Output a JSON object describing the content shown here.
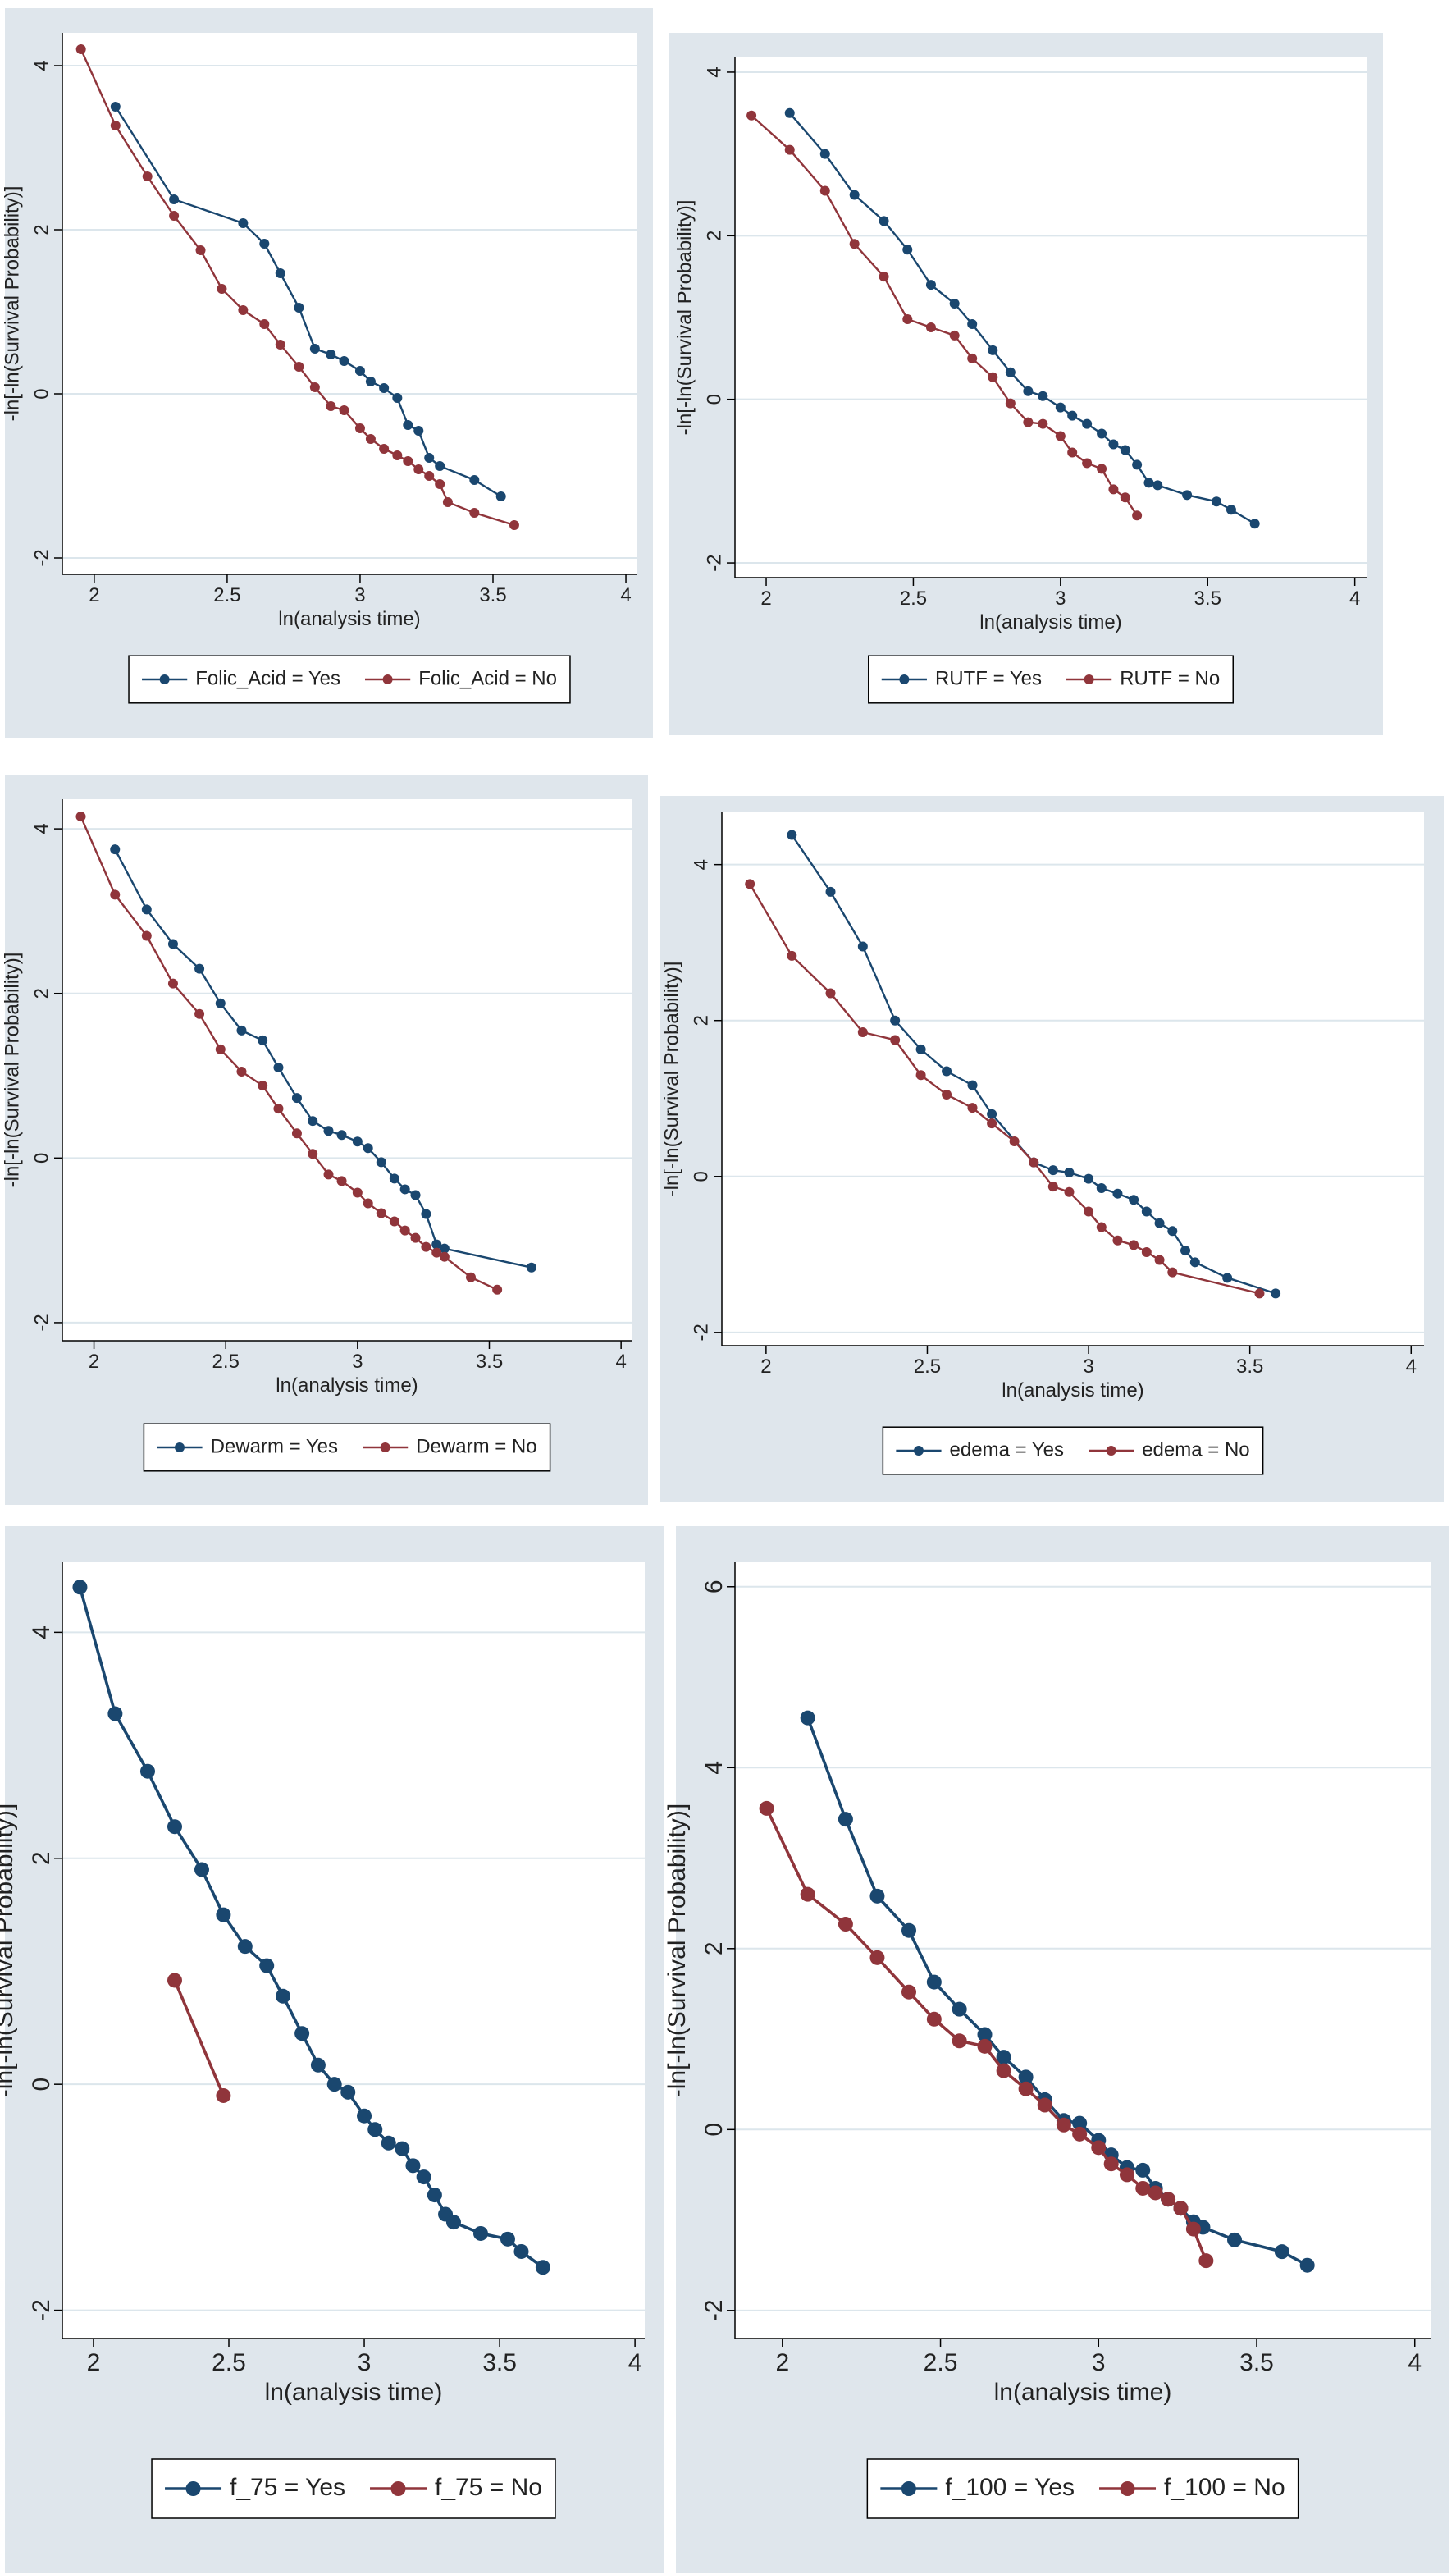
{
  "chart_data": [
    {
      "type": "line",
      "xlabel": "ln(analysis time)",
      "ylabel": "-ln[-ln(Survival Probability)]",
      "xlim": [
        1.88,
        4.04
      ],
      "ylim": [
        -2.2,
        4.4
      ],
      "xticks": [
        2,
        2.5,
        3,
        3.5,
        4
      ],
      "yticks": [
        -2,
        0,
        2,
        4
      ],
      "grid": true,
      "series": [
        {
          "name": "Folic_Acid = Yes",
          "color": "#1a476f",
          "x": [
            2.08,
            2.3,
            2.56,
            2.64,
            2.7,
            2.77,
            2.83,
            2.89,
            2.94,
            3.0,
            3.04,
            3.09,
            3.14,
            3.18,
            3.22,
            3.26,
            3.3,
            3.43,
            3.53
          ],
          "values": [
            3.5,
            2.37,
            2.08,
            1.83,
            1.47,
            1.05,
            0.55,
            0.48,
            0.4,
            0.28,
            0.15,
            0.07,
            -0.05,
            -0.38,
            -0.45,
            -0.78,
            -0.88,
            -1.05,
            -1.25
          ]
        },
        {
          "name": "Folic_Acid = No",
          "color": "#90353b",
          "x": [
            1.95,
            2.08,
            2.2,
            2.3,
            2.4,
            2.48,
            2.56,
            2.64,
            2.7,
            2.77,
            2.83,
            2.89,
            2.94,
            3.0,
            3.04,
            3.09,
            3.14,
            3.18,
            3.22,
            3.26,
            3.3,
            3.33,
            3.43,
            3.58
          ],
          "values": [
            4.2,
            3.27,
            2.65,
            2.17,
            1.75,
            1.28,
            1.02,
            0.85,
            0.6,
            0.33,
            0.08,
            -0.15,
            -0.2,
            -0.42,
            -0.55,
            -0.67,
            -0.75,
            -0.82,
            -0.92,
            -1.0,
            -1.1,
            -1.32,
            -1.45,
            -1.6
          ]
        }
      ]
    },
    {
      "type": "line",
      "xlabel": "ln(analysis time)",
      "ylabel": "-ln[-ln(Survival Probability)]",
      "xlim": [
        1.894,
        4.04
      ],
      "ylim": [
        -2.18,
        4.18
      ],
      "xticks": [
        2,
        2.5,
        3,
        3.5,
        4
      ],
      "yticks": [
        -2,
        0,
        2,
        4
      ],
      "grid": true,
      "series": [
        {
          "name": "RUTF = Yes",
          "color": "#1a476f",
          "x": [
            2.08,
            2.2,
            2.3,
            2.4,
            2.48,
            2.56,
            2.64,
            2.7,
            2.77,
            2.83,
            2.89,
            2.94,
            3.0,
            3.04,
            3.09,
            3.14,
            3.18,
            3.22,
            3.26,
            3.3,
            3.33,
            3.43,
            3.53,
            3.58,
            3.66
          ],
          "values": [
            3.5,
            3.0,
            2.5,
            2.18,
            1.83,
            1.4,
            1.17,
            0.92,
            0.6,
            0.33,
            0.1,
            0.04,
            -0.1,
            -0.2,
            -0.3,
            -0.42,
            -0.55,
            -0.62,
            -0.8,
            -1.02,
            -1.05,
            -1.17,
            -1.25,
            -1.35,
            -1.52
          ]
        },
        {
          "name": "RUTF = No",
          "color": "#90353b",
          "x": [
            1.95,
            2.08,
            2.2,
            2.3,
            2.4,
            2.48,
            2.56,
            2.64,
            2.7,
            2.77,
            2.83,
            2.89,
            2.94,
            3.0,
            3.04,
            3.09,
            3.14,
            3.18,
            3.22,
            3.26
          ],
          "values": [
            3.47,
            3.05,
            2.55,
            1.9,
            1.5,
            0.98,
            0.88,
            0.78,
            0.5,
            0.27,
            -0.05,
            -0.28,
            -0.3,
            -0.45,
            -0.65,
            -0.78,
            -0.85,
            -1.1,
            -1.2,
            -1.42
          ]
        }
      ]
    },
    {
      "type": "line",
      "xlabel": "ln(analysis time)",
      "ylabel": "-ln[-ln(Survival Probability)]",
      "xlim": [
        1.88,
        4.04
      ],
      "ylim": [
        -2.22,
        4.36
      ],
      "xticks": [
        2,
        2.5,
        3,
        3.5,
        4
      ],
      "yticks": [
        -2,
        0,
        2,
        4
      ],
      "grid": true,
      "series": [
        {
          "name": "Dewarm = Yes",
          "color": "#1a476f",
          "x": [
            2.08,
            2.2,
            2.3,
            2.4,
            2.48,
            2.56,
            2.64,
            2.7,
            2.77,
            2.83,
            2.89,
            2.94,
            3.0,
            3.04,
            3.09,
            3.14,
            3.18,
            3.22,
            3.26,
            3.3,
            3.33,
            3.66
          ],
          "values": [
            3.75,
            3.02,
            2.6,
            2.3,
            1.88,
            1.55,
            1.43,
            1.1,
            0.73,
            0.45,
            0.33,
            0.28,
            0.2,
            0.12,
            -0.05,
            -0.25,
            -0.38,
            -0.45,
            -0.68,
            -1.05,
            -1.1,
            -1.33
          ]
        },
        {
          "name": "Dewarm = No",
          "color": "#90353b",
          "x": [
            1.95,
            2.08,
            2.2,
            2.3,
            2.4,
            2.48,
            2.56,
            2.64,
            2.7,
            2.77,
            2.83,
            2.89,
            2.94,
            3.0,
            3.04,
            3.09,
            3.14,
            3.18,
            3.22,
            3.26,
            3.3,
            3.33,
            3.43,
            3.53
          ],
          "values": [
            4.15,
            3.2,
            2.7,
            2.12,
            1.75,
            1.32,
            1.05,
            0.88,
            0.6,
            0.3,
            0.05,
            -0.2,
            -0.28,
            -0.42,
            -0.55,
            -0.67,
            -0.77,
            -0.88,
            -0.97,
            -1.08,
            -1.15,
            -1.2,
            -1.45,
            -1.6
          ]
        }
      ]
    },
    {
      "type": "line",
      "xlabel": "ln(analysis time)",
      "ylabel": "-ln[-ln(Survival Probability)]",
      "xlim": [
        1.863,
        4.04
      ],
      "ylim": [
        -2.17,
        4.67
      ],
      "xticks": [
        2,
        2.5,
        3,
        3.5,
        4
      ],
      "yticks": [
        -2,
        0,
        2,
        4
      ],
      "grid": true,
      "series": [
        {
          "name": "edema = Yes",
          "color": "#1a476f",
          "x": [
            2.08,
            2.2,
            2.3,
            2.4,
            2.48,
            2.56,
            2.64,
            2.7,
            2.83,
            2.89,
            2.94,
            3.0,
            3.04,
            3.09,
            3.14,
            3.18,
            3.22,
            3.26,
            3.3,
            3.33,
            3.43,
            3.58
          ],
          "values": [
            4.38,
            3.65,
            2.95,
            2.0,
            1.63,
            1.35,
            1.17,
            0.8,
            0.18,
            0.08,
            0.05,
            -0.03,
            -0.15,
            -0.22,
            -0.3,
            -0.45,
            -0.6,
            -0.7,
            -0.95,
            -1.1,
            -1.3,
            -1.5
          ]
        },
        {
          "name": "edema = No",
          "color": "#90353b",
          "x": [
            1.95,
            2.08,
            2.2,
            2.3,
            2.4,
            2.48,
            2.56,
            2.64,
            2.7,
            2.77,
            2.83,
            2.89,
            2.94,
            3.0,
            3.04,
            3.09,
            3.14,
            3.18,
            3.22,
            3.26,
            3.53
          ],
          "values": [
            3.75,
            2.83,
            2.35,
            1.85,
            1.75,
            1.3,
            1.05,
            0.88,
            0.68,
            0.45,
            0.18,
            -0.13,
            -0.2,
            -0.45,
            -0.65,
            -0.82,
            -0.88,
            -0.97,
            -1.07,
            -1.23,
            -1.5
          ]
        }
      ]
    },
    {
      "type": "line",
      "xlabel": "ln(analysis time)",
      "ylabel": "-ln[-ln(Survival Probability)]",
      "xlim": [
        1.885,
        4.036
      ],
      "ylim": [
        -2.25,
        4.62
      ],
      "xticks": [
        2,
        2.5,
        3,
        3.5,
        4
      ],
      "yticks": [
        -2,
        0,
        2,
        4
      ],
      "grid": true,
      "series": [
        {
          "name": "f_75 = Yes",
          "color": "#1a476f",
          "x": [
            1.95,
            2.08,
            2.2,
            2.3,
            2.4,
            2.48,
            2.56,
            2.64,
            2.7,
            2.77,
            2.83,
            2.89,
            2.94,
            3.0,
            3.04,
            3.09,
            3.14,
            3.18,
            3.22,
            3.26,
            3.3,
            3.33,
            3.43,
            3.53,
            3.58,
            3.66
          ],
          "values": [
            4.4,
            3.28,
            2.77,
            2.28,
            1.9,
            1.5,
            1.22,
            1.05,
            0.78,
            0.45,
            0.17,
            0.0,
            -0.07,
            -0.28,
            -0.4,
            -0.52,
            -0.57,
            -0.72,
            -0.82,
            -0.98,
            -1.15,
            -1.22,
            -1.32,
            -1.37,
            -1.48,
            -1.62
          ]
        },
        {
          "name": "f_75 = No",
          "color": "#90353b",
          "x": [
            2.3,
            2.48
          ],
          "values": [
            0.92,
            -0.1
          ]
        }
      ]
    },
    {
      "type": "line",
      "xlabel": "ln(analysis time)",
      "ylabel": "-ln[-ln(Survival Probability)]",
      "xlim": [
        1.85,
        4.05
      ],
      "ylim": [
        -2.31,
        6.27
      ],
      "xticks": [
        2,
        2.5,
        3,
        3.5,
        4
      ],
      "yticks": [
        -2,
        0,
        2,
        4,
        6
      ],
      "grid": true,
      "series": [
        {
          "name": "f_100 = Yes",
          "color": "#1a476f",
          "x": [
            2.08,
            2.2,
            2.3,
            2.4,
            2.48,
            2.56,
            2.64,
            2.7,
            2.77,
            2.83,
            2.89,
            2.94,
            3.0,
            3.04,
            3.09,
            3.14,
            3.18,
            3.22,
            3.26,
            3.3,
            3.33,
            3.43,
            3.58,
            3.66
          ],
          "values": [
            4.55,
            3.43,
            2.58,
            2.2,
            1.63,
            1.33,
            1.05,
            0.8,
            0.58,
            0.33,
            0.1,
            0.07,
            -0.12,
            -0.28,
            -0.42,
            -0.45,
            -0.65,
            -0.77,
            -0.87,
            -1.02,
            -1.08,
            -1.22,
            -1.35,
            -1.5
          ]
        },
        {
          "name": "f_100 = No",
          "color": "#90353b",
          "x": [
            1.95,
            2.08,
            2.2,
            2.3,
            2.4,
            2.48,
            2.56,
            2.64,
            2.7,
            2.77,
            2.83,
            2.89,
            2.94,
            3.0,
            3.04,
            3.09,
            3.14,
            3.18,
            3.22,
            3.26,
            3.3,
            3.34
          ],
          "values": [
            3.55,
            2.6,
            2.27,
            1.9,
            1.52,
            1.22,
            0.98,
            0.92,
            0.65,
            0.45,
            0.27,
            0.05,
            -0.05,
            -0.2,
            -0.38,
            -0.5,
            -0.65,
            -0.7,
            -0.77,
            -0.87,
            -1.1,
            -1.45
          ]
        }
      ]
    }
  ]
}
